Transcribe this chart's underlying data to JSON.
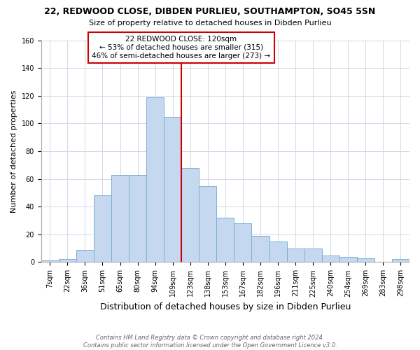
{
  "title": "22, REDWOOD CLOSE, DIBDEN PURLIEU, SOUTHAMPTON, SO45 5SN",
  "subtitle": "Size of property relative to detached houses in Dibden Purlieu",
  "xlabel": "Distribution of detached houses by size in Dibden Purlieu",
  "ylabel": "Number of detached properties",
  "bar_labels": [
    "7sqm",
    "22sqm",
    "36sqm",
    "51sqm",
    "65sqm",
    "80sqm",
    "94sqm",
    "109sqm",
    "123sqm",
    "138sqm",
    "153sqm",
    "167sqm",
    "182sqm",
    "196sqm",
    "211sqm",
    "225sqm",
    "240sqm",
    "254sqm",
    "269sqm",
    "283sqm",
    "298sqm"
  ],
  "bar_values": [
    1,
    2,
    9,
    48,
    63,
    63,
    119,
    105,
    68,
    55,
    32,
    28,
    19,
    15,
    10,
    10,
    5,
    4,
    3,
    0,
    2
  ],
  "bar_color": "#c5d8f0",
  "bar_edge_color": "#7bafd4",
  "vline_color": "#cc0000",
  "vline_index": 8,
  "ylim": [
    0,
    160
  ],
  "yticks": [
    0,
    20,
    40,
    60,
    80,
    100,
    120,
    140,
    160
  ],
  "annotation_title": "22 REDWOOD CLOSE: 120sqm",
  "annotation_line1": "← 53% of detached houses are smaller (315)",
  "annotation_line2": "46% of semi-detached houses are larger (273) →",
  "annotation_box_color": "#ffffff",
  "annotation_border_color": "#cc0000",
  "footer1": "Contains HM Land Registry data © Crown copyright and database right 2024.",
  "footer2": "Contains public sector information licensed under the Open Government Licence v3.0.",
  "title_fontsize": 9,
  "subtitle_fontsize": 8,
  "axis_label_fontsize": 8,
  "tick_fontsize": 7,
  "footer_fontsize": 6
}
